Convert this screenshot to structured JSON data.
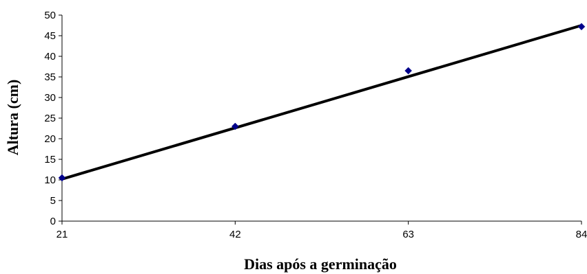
{
  "chart_data": {
    "type": "scatter",
    "xlabel": "Dias após a germinação",
    "ylabel": "Altura (cm)",
    "x_ticks": [
      21,
      42,
      63,
      84
    ],
    "y_ticks": [
      0,
      5,
      10,
      15,
      20,
      25,
      30,
      35,
      40,
      45,
      50
    ],
    "xlim": [
      21,
      84
    ],
    "ylim": [
      0,
      50
    ],
    "grid": false,
    "legend": "none",
    "series": [
      {
        "points": [
          {
            "x": 21,
            "y": 10.5
          },
          {
            "x": 42,
            "y": 23
          },
          {
            "x": 63,
            "y": 36.5
          },
          {
            "x": 84,
            "y": 47.2
          }
        ],
        "marker": "diamond",
        "color": "#00008B"
      }
    ],
    "trendline": {
      "type": "linear",
      "from": {
        "x": 21,
        "y": 10.2
      },
      "to": {
        "x": 84,
        "y": 47.5
      },
      "color": "#000000"
    }
  }
}
